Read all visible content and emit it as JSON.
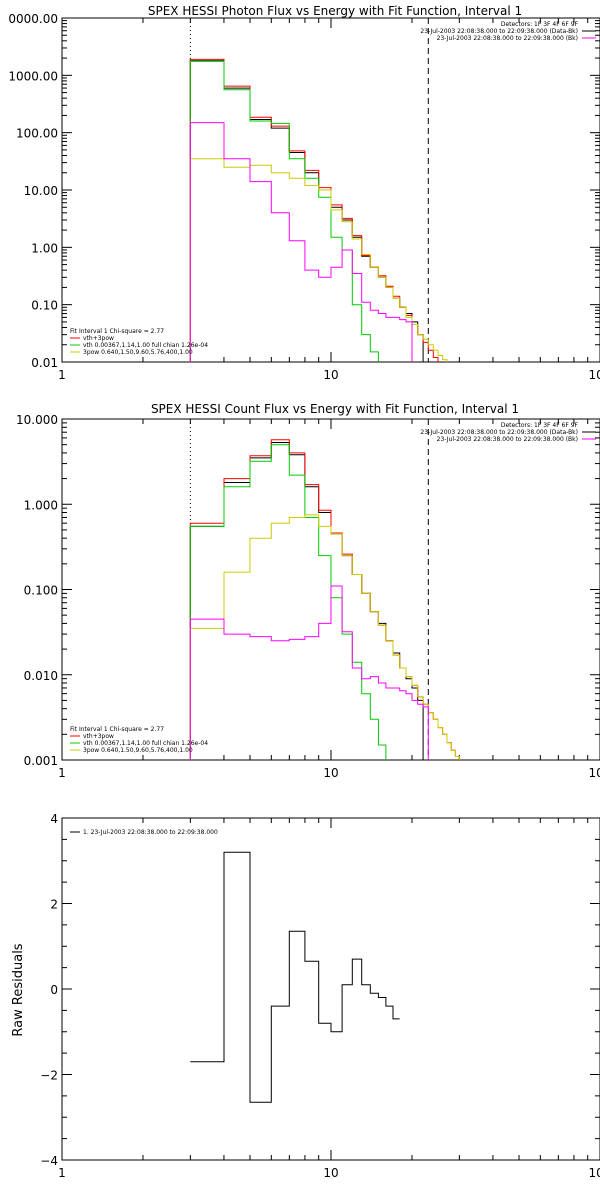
{
  "chart_data": [
    {
      "type": "line",
      "title": "SPEX HESSI Photon Flux vs Energy with Fit Function, Interval 1",
      "xscale": "log",
      "yscale": "log",
      "xlim": [
        1,
        100
      ],
      "ylim": [
        0.01,
        10000
      ],
      "xticks": [
        "1",
        "10",
        "100"
      ],
      "yticks": [
        "0000.00",
        "1000.00",
        "100.00",
        "10.00",
        "1.00",
        "0.10",
        "0.01"
      ],
      "ytick_values": [
        10000,
        1000,
        100,
        10,
        1,
        0.1,
        0.01
      ],
      "header": [
        "Detectors: 1F 3F 4F 6F 9F",
        "23-Jul-2003 22:08:38.000 to 22:09:38.000 (Data-Bk)",
        "23-Jul-2003 22:08:38.000 to 22:09:38.000 (Bk)"
      ],
      "header_colors": [
        "#000000",
        "#000000",
        "#ff00ff"
      ],
      "fit_legend": [
        {
          "text": "Fit Interval 1    Chi-square = 2.77",
          "color": "#000000"
        },
        {
          "text": "vth+3pow",
          "color": "#ff0000"
        },
        {
          "text": "vth 0.00367,1.14,1.00  full chian 1.26e-04",
          "color": "#00cc00"
        },
        {
          "text": "3pow 0.640,1.50,9.60,5.76,400,1.00",
          "color": "#cccc00"
        }
      ],
      "vlines": [
        {
          "x": 3,
          "style": "dotted",
          "color": "#000000"
        },
        {
          "x": 23,
          "style": "dashed",
          "color": "#000000"
        }
      ],
      "edges": [
        3,
        4,
        5,
        6,
        7,
        8,
        9,
        10,
        11,
        12,
        13,
        14,
        15,
        16,
        17,
        18,
        19,
        20,
        21,
        22,
        23,
        24,
        25,
        26,
        27,
        28,
        29,
        30,
        31
      ],
      "series": [
        {
          "name": "Data-Bk",
          "color": "#000000",
          "values": [
            1800,
            600,
            170,
            120,
            45,
            20,
            10,
            5,
            3,
            1.5,
            0.7,
            0.45,
            0.3,
            0.2,
            0.13,
            0.09,
            0.07,
            0.05,
            0.03,
            null,
            null,
            null,
            null,
            null,
            null,
            null,
            null,
            null
          ]
        },
        {
          "name": "vth+3pow",
          "color": "#ff0000",
          "values": [
            1900,
            650,
            185,
            130,
            48,
            22,
            11,
            5.5,
            3.2,
            1.6,
            0.72,
            0.45,
            0.32,
            0.21,
            0.14,
            0.09,
            0.065,
            0.045,
            0.03,
            0.022,
            0.016,
            0.012,
            null,
            null,
            null,
            null,
            null,
            null
          ]
        },
        {
          "name": "vth",
          "color": "#00cc00",
          "values": [
            1750,
            560,
            160,
            145,
            35,
            16,
            7.5,
            1.5,
            0.9,
            0.1,
            0.03,
            0.015,
            null,
            null,
            null,
            null,
            null,
            null,
            null,
            null,
            null,
            null,
            null,
            null,
            null,
            null,
            null,
            null
          ]
        },
        {
          "name": "3pow",
          "color": "#cccc00",
          "values": [
            35,
            25,
            27,
            20,
            16,
            12,
            10,
            4.5,
            2.8,
            1.4,
            0.75,
            0.45,
            0.3,
            0.2,
            0.13,
            0.09,
            0.06,
            0.045,
            0.03,
            0.025,
            0.02,
            0.016,
            0.013,
            0.011,
            null,
            null,
            null,
            null
          ]
        },
        {
          "name": "Bk",
          "color": "#ff00ff",
          "values": [
            150,
            35,
            14,
            4,
            1.3,
            0.4,
            0.3,
            0.45,
            0.9,
            0.35,
            0.11,
            0.08,
            0.07,
            0.06,
            0.06,
            0.055,
            0.05,
            null,
            null,
            null,
            null,
            null,
            null,
            null,
            null,
            null,
            null,
            null
          ]
        }
      ]
    },
    {
      "type": "line",
      "title": "SPEX HESSI Count Flux vs Energy with Fit Function, Interval 1",
      "xscale": "log",
      "yscale": "log",
      "xlim": [
        1,
        100
      ],
      "ylim": [
        0.001,
        10
      ],
      "xticks": [
        "1",
        "10",
        "100"
      ],
      "yticks": [
        "10.000",
        "1.000",
        "0.100",
        "0.010",
        "0.001"
      ],
      "ytick_values": [
        10,
        1,
        0.1,
        0.01,
        0.001
      ],
      "header": [
        "Detectors: 1F 3F 4F 6F 9F",
        "23-Jul-2003 22:08:38.000 to 22:09:38.000 (Data-Bk)",
        "23-Jul-2003 22:08:38.000 to 22:09:38.000 (Bk)"
      ],
      "header_colors": [
        "#000000",
        "#000000",
        "#ff00ff"
      ],
      "fit_legend": [
        {
          "text": "Fit Interval 1    Chi-square = 2.77",
          "color": "#000000"
        },
        {
          "text": "vth+3pow",
          "color": "#ff0000"
        },
        {
          "text": "vth 0.00367,1.14,1.00  full chian 1.26e-04",
          "color": "#00cc00"
        },
        {
          "text": "3pow 0.640,1.50,9.60,5.76,400,1.00",
          "color": "#cccc00"
        }
      ],
      "vlines": [
        {
          "x": 3,
          "style": "dotted",
          "color": "#000000"
        },
        {
          "x": 23,
          "style": "dashed",
          "color": "#000000"
        }
      ],
      "edges": [
        3,
        4,
        5,
        6,
        7,
        8,
        9,
        10,
        11,
        12,
        13,
        14,
        15,
        16,
        17,
        18,
        19,
        20,
        21,
        22,
        23,
        24,
        25,
        26,
        27,
        28,
        29,
        30,
        31,
        32,
        33,
        34,
        35
      ],
      "series": [
        {
          "name": "Data-Bk",
          "color": "#000000",
          "values": [
            0.55,
            1.8,
            3.5,
            5.3,
            3.8,
            1.6,
            0.8,
            0.45,
            0.25,
            0.15,
            0.09,
            0.055,
            0.04,
            0.025,
            0.018,
            0.012,
            0.009,
            0.007,
            0.005,
            null,
            null,
            null,
            null,
            null,
            null,
            null,
            null,
            null,
            null,
            null,
            null,
            null
          ]
        },
        {
          "name": "vth+3pow",
          "color": "#ff0000",
          "values": [
            0.6,
            2.0,
            3.7,
            5.7,
            4.0,
            1.7,
            0.85,
            0.46,
            0.26,
            0.15,
            0.09,
            0.055,
            0.038,
            0.025,
            0.017,
            0.012,
            0.0095,
            0.0075,
            0.0055,
            0.0045,
            0.0036,
            0.003,
            0.0024,
            0.002,
            0.0016,
            0.0013,
            0.0011,
            null,
            null,
            null,
            null,
            null
          ]
        },
        {
          "name": "vth",
          "color": "#00cc00",
          "values": [
            0.55,
            1.6,
            3.2,
            5.0,
            2.2,
            0.7,
            0.25,
            0.08,
            0.03,
            0.014,
            0.006,
            0.003,
            0.0015,
            null,
            null,
            null,
            null,
            null,
            null,
            null,
            null,
            null,
            null,
            null,
            null,
            null,
            null,
            null,
            null,
            null,
            null,
            null
          ]
        },
        {
          "name": "3pow",
          "color": "#cccc00",
          "values": [
            0.035,
            0.16,
            0.4,
            0.6,
            0.7,
            0.75,
            0.55,
            0.45,
            0.25,
            0.15,
            0.09,
            0.055,
            0.038,
            0.025,
            0.017,
            0.012,
            0.0095,
            0.0075,
            0.0055,
            0.0045,
            0.0036,
            0.003,
            0.0024,
            0.002,
            0.0016,
            0.0013,
            0.0011,
            null,
            null,
            null,
            null,
            null
          ]
        },
        {
          "name": "Bk",
          "color": "#ff00ff",
          "values": [
            0.045,
            0.03,
            0.028,
            0.025,
            0.026,
            0.028,
            0.04,
            0.11,
            0.032,
            0.012,
            0.009,
            0.0095,
            0.008,
            0.007,
            0.007,
            0.0065,
            0.006,
            0.005,
            0.0045,
            0.0042,
            null,
            null,
            null,
            null,
            null,
            null,
            null,
            null,
            null,
            null,
            null,
            null
          ]
        }
      ]
    },
    {
      "type": "line",
      "title": "",
      "xscale": "log",
      "yscale": "linear",
      "xlim": [
        1,
        100
      ],
      "ylim": [
        -4,
        4
      ],
      "xticks": [
        "1",
        "10",
        "100"
      ],
      "yticks": [
        "4",
        "2",
        "0",
        "−2",
        "−4"
      ],
      "ytick_values": [
        4,
        2,
        0,
        -2,
        -4
      ],
      "ylabel": "Raw Residuals",
      "legend": [
        "1. 23-Jul-2003 22:08:38.000 to 22:09:38.000"
      ],
      "edges": [
        3,
        4,
        5,
        6,
        7,
        8,
        9,
        10,
        11,
        12,
        13,
        14,
        15,
        16,
        17,
        18,
        19,
        20,
        21,
        22,
        23
      ],
      "series": [
        {
          "name": "",
          "color": "#000000",
          "values": [
            -1.7,
            3.2,
            -2.65,
            -0.4,
            1.35,
            0.65,
            -0.8,
            -1.0,
            0.1,
            0.7,
            0.1,
            -0.1,
            -0.2,
            -0.4,
            -0.7
          ]
        }
      ]
    }
  ]
}
